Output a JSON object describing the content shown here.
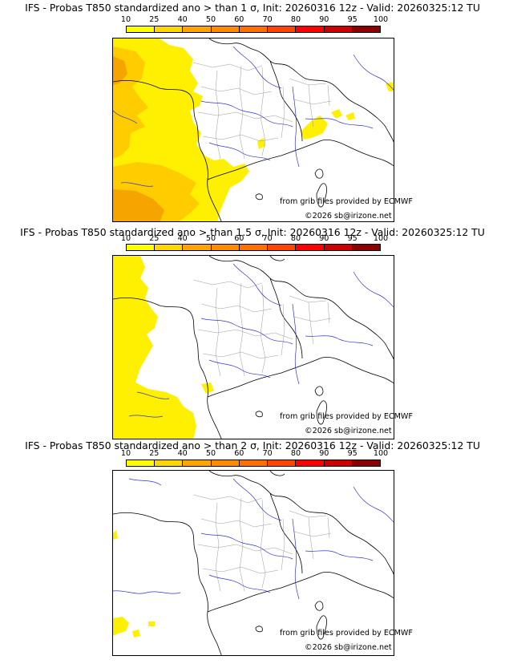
{
  "colors": {
    "scale": [
      "#ffff00",
      "#ffd700",
      "#ffa500",
      "#ff8c00",
      "#ff7000",
      "#ff4500",
      "#ff0000",
      "#cc0000",
      "#8b0000",
      "#5a0000"
    ],
    "prob_light": "#ffef00",
    "prob_mid": "#ffcc00",
    "prob_dark": "#f5a400",
    "rivers": "#3333cc",
    "borders": "#000000",
    "regions": "#999999"
  },
  "colorbar": {
    "ticks": [
      "10",
      "25",
      "40",
      "50",
      "60",
      "70",
      "80",
      "90",
      "95",
      "100"
    ]
  },
  "panels": [
    {
      "title": "IFS - Probas T850  standardized ano > than 1 σ, Init: 20260316 12z - Valid: 20260325:12 TU",
      "credit_source": "from grib files provided by ECMWF",
      "credit_copyright": "©2026 sb@irizone.net",
      "icon": "probability-map"
    },
    {
      "title": "IFS - Probas T850  standardized ano > than 1.5 σ, Init: 20260316 12z - Valid: 20260325:12 TU",
      "credit_source": "from grib files provided by ECMWF",
      "credit_copyright": "©2026 sb@irizone.net",
      "icon": "probability-map"
    },
    {
      "title": "IFS - Probas T850  standardized ano > than 2 σ, Init: 20260316 12z - Valid: 20260325:12 TU",
      "credit_source": "from grib files provided by ECMWF",
      "credit_copyright": "©2026 sb@irizone.net",
      "icon": "probability-map"
    }
  ]
}
